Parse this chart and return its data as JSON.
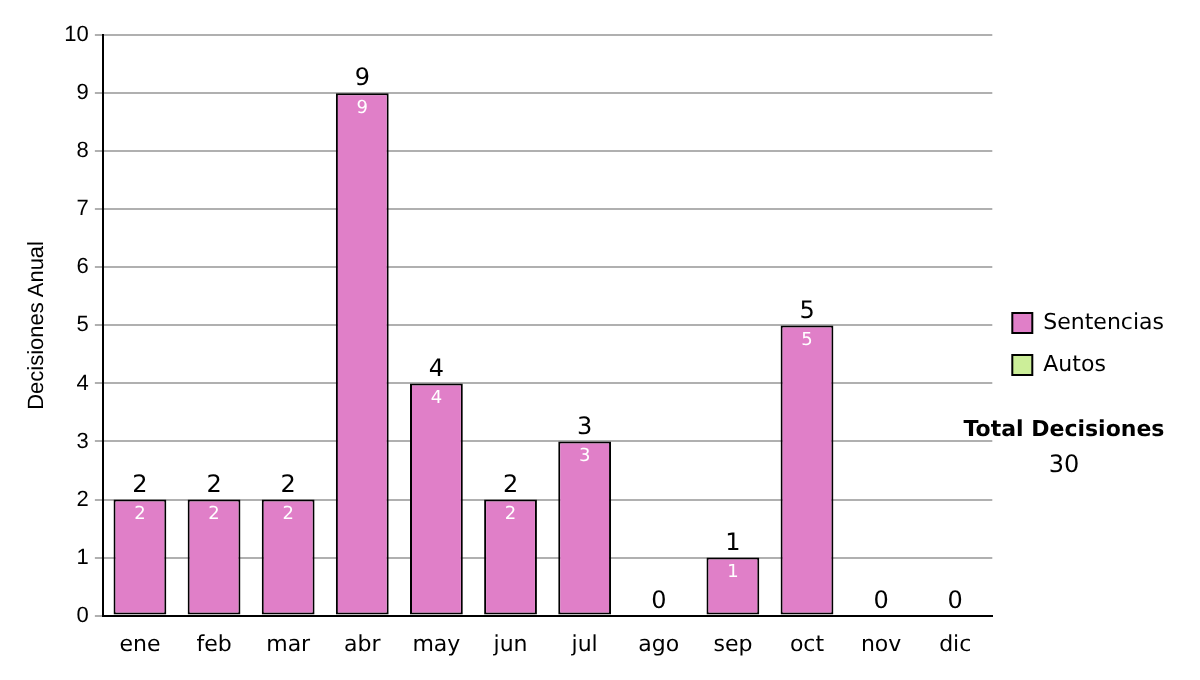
{
  "chart_data": {
    "type": "bar",
    "stacked": true,
    "ylabel": "Decisiones Anual",
    "categories": [
      "ene",
      "feb",
      "mar",
      "abr",
      "may",
      "jun",
      "jul",
      "ago",
      "sep",
      "oct",
      "nov",
      "dic"
    ],
    "series": [
      {
        "name": "Sentencias",
        "color": "#e07fc8",
        "values": [
          2,
          2,
          2,
          9,
          4,
          2,
          3,
          0,
          1,
          5,
          0,
          0
        ],
        "value_labels": [
          "2",
          "2",
          "2",
          "9",
          "4",
          "2",
          "3",
          null,
          "1",
          "5",
          null,
          null
        ]
      },
      {
        "name": "Autos",
        "color": "#ccee99",
        "values": [
          0,
          0,
          0,
          0,
          0,
          0,
          0,
          0,
          0,
          0,
          0,
          0
        ]
      }
    ],
    "totals": [
      "2",
      "2",
      "2",
      "9",
      "4",
      "2",
      "3",
      "0",
      "1",
      "5",
      "0",
      "0"
    ],
    "ylim": [
      0,
      10
    ],
    "yticks": [
      0,
      1,
      2,
      3,
      4,
      5,
      6,
      7,
      8,
      9,
      10
    ],
    "grid": "y",
    "legend": "right",
    "annotations": [
      "Total Decisiones",
      "30"
    ]
  }
}
